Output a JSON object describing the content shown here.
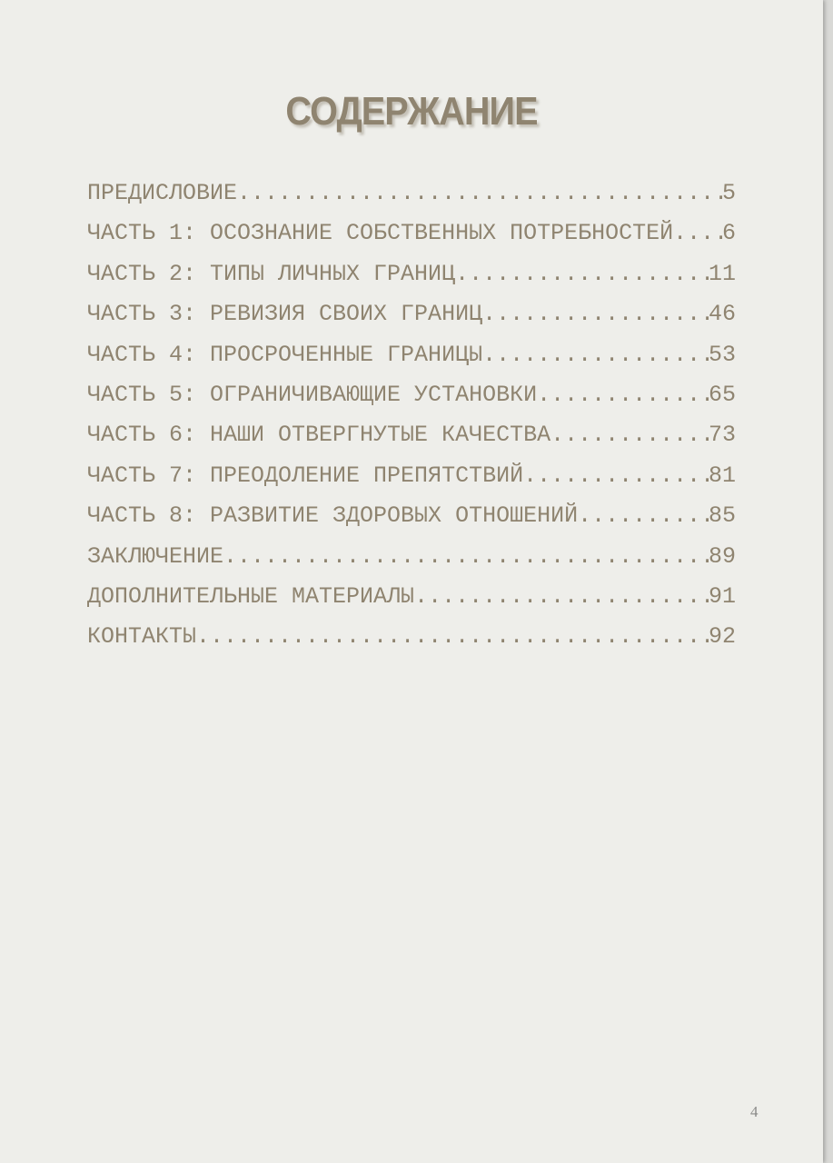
{
  "title": "СОДЕРЖАНИЕ",
  "toc": [
    {
      "label": "ПРЕДИСЛОВИЕ",
      "page": "5"
    },
    {
      "label": "ЧАСТЬ 1: ОСОЗНАНИЕ СОБСТВЕННЫХ ПОТРЕБНОСТЕЙ",
      "page": "6"
    },
    {
      "label": "ЧАСТЬ 2: ТИПЫ ЛИЧНЫХ ГРАНИЦ",
      "page": "11"
    },
    {
      "label": "ЧАСТЬ 3: РЕВИЗИЯ СВОИХ ГРАНИЦ",
      "page": "46"
    },
    {
      "label": "ЧАСТЬ 4: ПРОСРОЧЕННЫЕ ГРАНИЦЫ",
      "page": "53"
    },
    {
      "label": "ЧАСТЬ 5: ОГРАНИЧИВАЮЩИЕ УСТАНОВКИ",
      "page": "65"
    },
    {
      "label": "ЧАСТЬ 6: НАШИ ОТВЕРГНУТЫЕ КАЧЕСТВА",
      "page": "73"
    },
    {
      "label": "ЧАСТЬ 7: ПРЕОДОЛЕНИЕ ПРЕПЯТСТВИЙ",
      "page": "81"
    },
    {
      "label": "ЧАСТЬ 8: РАЗВИТИЕ ЗДОРОВЫХ ОТНОШЕНИЙ",
      "page": " 85"
    },
    {
      "label": "ЗАКЛЮЧЕНИЕ",
      "page": "89"
    },
    {
      "label": "ДОПОЛНИТЕЛЬНЫЕ МАТЕРИАЛЫ",
      "page": "91"
    },
    {
      "label": "КОНТАКТЫ",
      "page": "92"
    }
  ],
  "page_number": "4",
  "colors": {
    "text": "#8f8470",
    "background": "#eeeeea"
  }
}
